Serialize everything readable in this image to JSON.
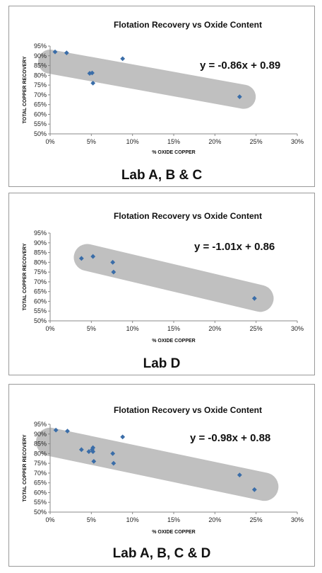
{
  "chart_data": [
    {
      "type": "scatter",
      "title": "Flotation Recovery vs Oxide Content",
      "xlabel": "% OXIDE COPPER",
      "ylabel": "TOTAL COPPER RECOVERY",
      "xlim": [
        0,
        0.3
      ],
      "ylim": [
        0.5,
        0.95
      ],
      "x_ticks": [
        "0%",
        "5%",
        "10%",
        "15%",
        "20%",
        "25%",
        "30%"
      ],
      "y_ticks": [
        "50%",
        "55%",
        "60%",
        "65%",
        "70%",
        "75%",
        "80%",
        "85%",
        "90%",
        "95%"
      ],
      "equation": "y = -0.86x + 0.89",
      "caption": "Lab A, B & C",
      "band_color": "#c0c0c0",
      "marker_color": "#3a6da8",
      "band": {
        "from": [
          0.0,
          0.87
        ],
        "to": [
          0.235,
          0.69
        ]
      },
      "points": [
        {
          "x": 0.006,
          "y": 0.92
        },
        {
          "x": 0.02,
          "y": 0.915
        },
        {
          "x": 0.048,
          "y": 0.81
        },
        {
          "x": 0.051,
          "y": 0.812
        },
        {
          "x": 0.052,
          "y": 0.76
        },
        {
          "x": 0.088,
          "y": 0.885
        },
        {
          "x": 0.23,
          "y": 0.69
        }
      ]
    },
    {
      "type": "scatter",
      "title": "Flotation Recovery vs Oxide Content",
      "xlabel": "% OXIDE COPPER",
      "ylabel": "TOTAL COPPER RECOVERY",
      "xlim": [
        0,
        0.3
      ],
      "ylim": [
        0.5,
        0.95
      ],
      "x_ticks": [
        "0%",
        "5%",
        "10%",
        "15%",
        "20%",
        "25%",
        "30%"
      ],
      "y_ticks": [
        "50%",
        "55%",
        "60%",
        "65%",
        "70%",
        "75%",
        "80%",
        "85%",
        "90%",
        "95%"
      ],
      "equation": "y = -1.01x + 0.86",
      "caption": "Lab D",
      "band_color": "#c0c0c0",
      "marker_color": "#3a6da8",
      "band": {
        "from": [
          0.045,
          0.825
        ],
        "to": [
          0.255,
          0.615
        ]
      },
      "points": [
        {
          "x": 0.038,
          "y": 0.82
        },
        {
          "x": 0.052,
          "y": 0.83
        },
        {
          "x": 0.076,
          "y": 0.8
        },
        {
          "x": 0.077,
          "y": 0.75
        },
        {
          "x": 0.248,
          "y": 0.615
        }
      ]
    },
    {
      "type": "scatter",
      "title": "Flotation Recovery vs Oxide Content",
      "xlabel": "% OXIDE COPPER",
      "ylabel": "TOTAL COPPER RECOVERY",
      "xlim": [
        0,
        0.3
      ],
      "ylim": [
        0.5,
        0.95
      ],
      "x_ticks": [
        "0%",
        "5%",
        "10%",
        "15%",
        "20%",
        "25%",
        "30%"
      ],
      "y_ticks": [
        "50%",
        "55%",
        "60%",
        "65%",
        "70%",
        "75%",
        "80%",
        "85%",
        "90%",
        "95%"
      ],
      "equation": "y = -0.98x + 0.88",
      "caption": "Lab A, B, C & D",
      "band_color": "#c0c0c0",
      "marker_color": "#3a6da8",
      "band": {
        "from": [
          0.0,
          0.86
        ],
        "to": [
          0.26,
          0.63
        ]
      },
      "points": [
        {
          "x": 0.007,
          "y": 0.92
        },
        {
          "x": 0.021,
          "y": 0.915
        },
        {
          "x": 0.038,
          "y": 0.82
        },
        {
          "x": 0.047,
          "y": 0.81
        },
        {
          "x": 0.051,
          "y": 0.82
        },
        {
          "x": 0.052,
          "y": 0.83
        },
        {
          "x": 0.052,
          "y": 0.81
        },
        {
          "x": 0.053,
          "y": 0.76
        },
        {
          "x": 0.076,
          "y": 0.8
        },
        {
          "x": 0.077,
          "y": 0.75
        },
        {
          "x": 0.088,
          "y": 0.885
        },
        {
          "x": 0.23,
          "y": 0.69
        },
        {
          "x": 0.248,
          "y": 0.615
        }
      ]
    }
  ]
}
